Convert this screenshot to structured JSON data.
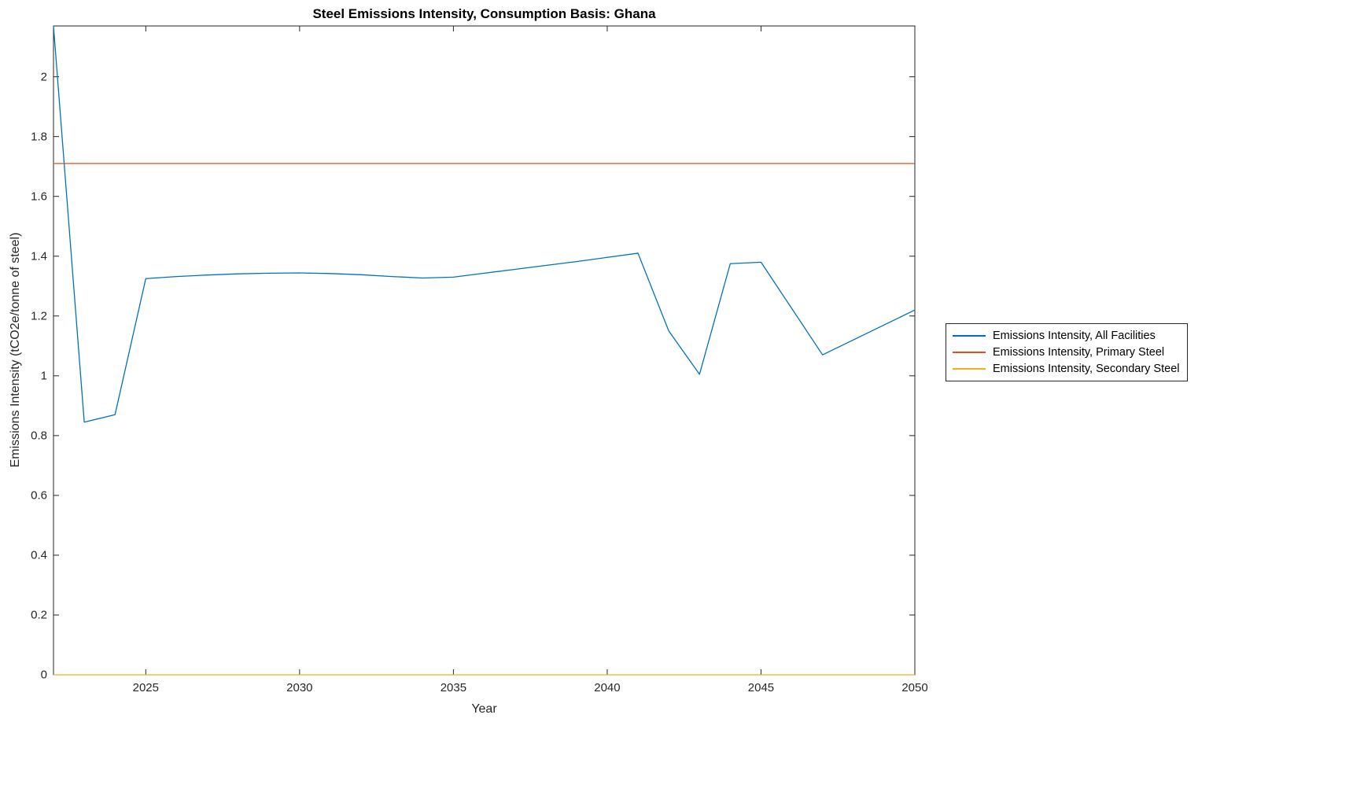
{
  "chart_data": {
    "type": "line",
    "title": "Steel Emissions Intensity, Consumption Basis: Ghana",
    "xlabel": "Year",
    "ylabel": "Emissions Intensity (tCO2e/tonne of steel)",
    "xlim": [
      2022,
      2050
    ],
    "ylim": [
      0,
      2.17
    ],
    "xticks": [
      2025,
      2030,
      2035,
      2040,
      2045,
      2050
    ],
    "yticks": [
      0,
      0.2,
      0.4,
      0.6,
      0.8,
      1,
      1.2,
      1.4,
      1.6,
      1.8,
      2
    ],
    "grid": false,
    "box": true,
    "axis_color": "#262626",
    "legend_position": "right-outside",
    "x": [
      2022,
      2023,
      2024,
      2025,
      2026,
      2027,
      2028,
      2029,
      2030,
      2031,
      2032,
      2033,
      2034,
      2035,
      2036,
      2037,
      2038,
      2039,
      2040,
      2041,
      2042,
      2043,
      2044,
      2045,
      2046,
      2047,
      2048,
      2049,
      2050
    ],
    "series": [
      {
        "name": "Emissions Intensity, All Facilities",
        "color": "#0072BD",
        "values": [
          2.17,
          0.845,
          0.87,
          1.325,
          1.332,
          1.337,
          1.341,
          1.343,
          1.344,
          1.342,
          1.338,
          1.332,
          1.327,
          1.33,
          1.343,
          1.356,
          1.369,
          1.382,
          1.396,
          1.41,
          1.15,
          1.005,
          1.375,
          1.38,
          1.225,
          1.07,
          1.12,
          1.17,
          1.22
        ]
      },
      {
        "name": "Emissions Intensity, Primary Steel",
        "color": "#D95319",
        "constant": 1.71
      },
      {
        "name": "Emissions Intensity, Secondary Steel",
        "color": "#EDB120",
        "constant": 0
      }
    ]
  }
}
